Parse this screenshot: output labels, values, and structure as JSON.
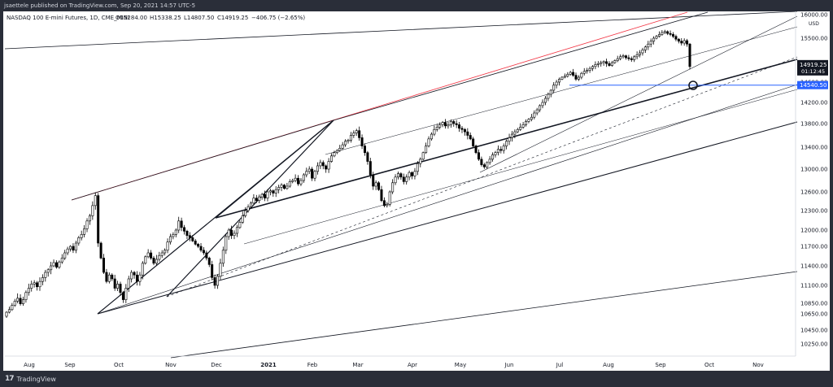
{
  "header": {
    "publisher_line": "jsaettele published on TradingView.com, Sep 20, 2021 14:57 UTC-5",
    "symbol_line": "NASDAQ 100 E-mini Futures, 1D, CME_MINI",
    "ohlc": {
      "o": "O15284.00",
      "h": "H15338.25",
      "l": "L14807.50",
      "c": "C14919.25",
      "chg": "−406.75 (−2.65%)"
    }
  },
  "footer": {
    "brand": "TradingView",
    "logo": "tv-logo-icon"
  },
  "colors": {
    "up": "#ffffff",
    "down": "#000000",
    "red_line": "#f23645",
    "blue_line": "#2962ff",
    "axis_text": "#131722"
  },
  "chart_data": {
    "type": "candlestick",
    "currency": "USD",
    "y_axis_ticks": [
      16000,
      15500,
      15000,
      14600,
      14200,
      13800,
      13400,
      13000,
      12600,
      12300,
      12000,
      11700,
      11400,
      11100,
      10850,
      10650,
      10450,
      10250
    ],
    "x_axis_ticks": [
      "Aug",
      "Sep",
      "Oct",
      "Nov",
      "Dec",
      "2021",
      "Feb",
      "Mar",
      "Apr",
      "May",
      "Jun",
      "Jul",
      "Aug",
      "Sep",
      "Oct",
      "Nov"
    ],
    "price_labels": [
      {
        "text": "14919.25",
        "sub": "01:12:45",
        "value": 14919.25,
        "style": "dark"
      },
      {
        "text": "14540.50",
        "value": 14540.5,
        "style": "blue"
      }
    ],
    "closes": [
      10680,
      10730,
      10810,
      10880,
      10920,
      10840,
      10900,
      11000,
      11060,
      11120,
      11140,
      11080,
      11160,
      11220,
      11300,
      11340,
      11400,
      11450,
      11380,
      11460,
      11520,
      11600,
      11660,
      11700,
      11640,
      11760,
      11860,
      11920,
      12020,
      12140,
      12220,
      12380,
      12540,
      11760,
      11520,
      11300,
      11160,
      11260,
      11200,
      11060,
      11120,
      11000,
      10900,
      11060,
      11200,
      11300,
      11260,
      11160,
      11260,
      11440,
      11540,
      11600,
      11520,
      11440,
      11500,
      11560,
      11600,
      11640,
      11780,
      11880,
      11920,
      12000,
      12140,
      12040,
      11980,
      11900,
      11860,
      11800,
      11740,
      11700,
      11640,
      11600,
      11520,
      11420,
      11220,
      11100,
      11240,
      11440,
      11640,
      11880,
      12000,
      11900,
      11940,
      12040,
      12120,
      12220,
      12300,
      12360,
      12420,
      12500,
      12460,
      12520,
      12560,
      12500,
      12600,
      12620,
      12580,
      12640,
      12680,
      12720,
      12660,
      12700,
      12780,
      12800,
      12840,
      12740,
      12800,
      12900,
      12960,
      13000,
      12840,
      12960,
      13060,
      13120,
      13060,
      13000,
      13140,
      13240,
      13300,
      13340,
      13380,
      13440,
      13500,
      13520,
      13600,
      13640,
      13680,
      13560,
      13420,
      13300,
      13140,
      12900,
      12700,
      12760,
      12640,
      12460,
      12380,
      12400,
      12600,
      12760,
      12860,
      12920,
      12860,
      12780,
      12860,
      12940,
      12880,
      12960,
      13100,
      13180,
      13300,
      13420,
      13540,
      13620,
      13700,
      13740,
      13780,
      13820,
      13760,
      13780,
      13840,
      13800,
      13780,
      13720,
      13700,
      13660,
      13600,
      13540,
      13420,
      13300,
      13180,
      13080,
      13040,
      13120,
      13180,
      13260,
      13300,
      13360,
      13340,
      13420,
      13500,
      13560,
      13620,
      13660,
      13700,
      13740,
      13780,
      13840,
      13880,
      13920,
      14000,
      14060,
      14140,
      14200,
      14280,
      14360,
      14440,
      14540,
      14600,
      14660,
      14700,
      14720,
      14760,
      14800,
      14740,
      14660,
      14700,
      14780,
      14820,
      14840,
      14880,
      14920,
      14960,
      14980,
      15000,
      15020,
      14980,
      14940,
      15000,
      15040,
      15080,
      15120,
      15140,
      15100,
      15080,
      15060,
      15120,
      15160,
      15200,
      15260,
      15320,
      15380,
      15440,
      15500,
      15540,
      15580,
      15620,
      15640,
      15600,
      15580,
      15540,
      15480,
      15440,
      15400,
      15450,
      15380,
      14919.25
    ]
  }
}
